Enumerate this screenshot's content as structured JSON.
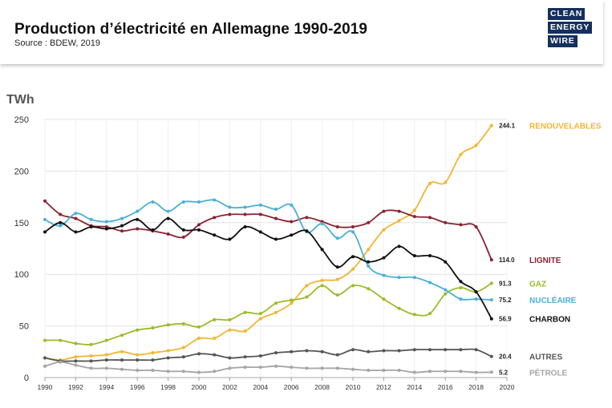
{
  "header": {
    "title": "Production d’électricité en Allemagne 1990-2019",
    "source": "Source : BDEW, 2019",
    "logo_lines": [
      "CLEAN",
      "ENERGY",
      "WIRE"
    ]
  },
  "chart_data": {
    "type": "line",
    "unit_label": "TWh",
    "x_ticks": [
      1990,
      1992,
      1994,
      1996,
      1998,
      2000,
      2002,
      2004,
      2006,
      2008,
      2010,
      2012,
      2014,
      2016,
      2018,
      2020
    ],
    "y_ticks": [
      0,
      50,
      100,
      150,
      200,
      250
    ],
    "xlim": [
      1990,
      2020
    ],
    "ylim": [
      0,
      250
    ],
    "grid": true,
    "x": [
      1990,
      1991,
      1992,
      1993,
      1994,
      1995,
      1996,
      1997,
      1998,
      1999,
      2000,
      2001,
      2002,
      2003,
      2004,
      2005,
      2006,
      2007,
      2008,
      2009,
      2010,
      2011,
      2012,
      2013,
      2014,
      2015,
      2016,
      2017,
      2018,
      2019
    ],
    "series": [
      {
        "name": "RENOUVELABLES",
        "color": "#f2b632",
        "end_label": "244.1",
        "values": [
          19,
          17,
          20,
          21,
          22,
          25,
          22,
          24,
          26,
          29,
          38,
          38,
          46,
          45,
          57,
          63,
          72,
          89,
          94,
          95,
          105,
          124,
          143,
          152,
          162,
          188,
          189,
          216,
          225,
          244.1
        ]
      },
      {
        "name": "LIGNITE",
        "color": "#8b2332",
        "end_label": "114.0",
        "values": [
          171,
          158,
          154,
          147,
          146,
          142,
          144,
          142,
          139,
          136,
          148,
          155,
          158,
          158,
          158,
          154,
          151,
          155,
          151,
          146,
          146,
          150,
          161,
          161,
          156,
          155,
          150,
          148,
          146,
          114.0
        ]
      },
      {
        "name": "GAZ",
        "color": "#9bbb2a",
        "end_label": "91.3",
        "values": [
          36,
          36,
          33,
          32,
          36,
          41,
          46,
          48,
          51,
          52,
          49,
          56,
          56,
          63,
          62,
          72,
          75,
          78,
          89,
          80,
          89,
          86,
          76,
          67,
          61,
          62,
          81,
          87,
          83,
          91.3
        ]
      },
      {
        "name": "NUCLÉAIRE",
        "color": "#4ab0d9",
        "end_label": "75.2",
        "values": [
          153,
          147,
          159,
          153,
          151,
          154,
          161,
          170,
          161,
          170,
          170,
          172,
          165,
          165,
          167,
          163,
          167,
          141,
          149,
          135,
          141,
          108,
          99,
          97,
          97,
          92,
          85,
          76,
          76,
          75.2
        ]
      },
      {
        "name": "CHARBON",
        "color": "#111111",
        "end_label": "56.9",
        "values": [
          141,
          150,
          141,
          146,
          144,
          147,
          153,
          143,
          154,
          143,
          143,
          138,
          134,
          146,
          141,
          134,
          138,
          142,
          124,
          107,
          117,
          112,
          116,
          127,
          118,
          118,
          112,
          93,
          83,
          56.9
        ]
      },
      {
        "name": "AUTRES",
        "color": "#555555",
        "end_label": "20.4",
        "values": [
          19,
          16,
          16,
          16,
          17,
          17,
          17,
          17,
          19,
          20,
          23,
          22,
          19,
          20,
          21,
          24,
          25,
          26,
          25,
          22,
          27,
          25,
          26,
          26,
          27,
          27,
          27,
          27,
          27,
          20.4
        ]
      },
      {
        "name": "PÉTROLE",
        "color": "#a5a5a5",
        "end_label": "5.2",
        "values": [
          11,
          15,
          12,
          9,
          9,
          8,
          7,
          7,
          6,
          6,
          5,
          6,
          9,
          10,
          10,
          11,
          10,
          9,
          9,
          9,
          8,
          7,
          7,
          7,
          5,
          6,
          6,
          6,
          5,
          5.2
        ]
      }
    ]
  }
}
